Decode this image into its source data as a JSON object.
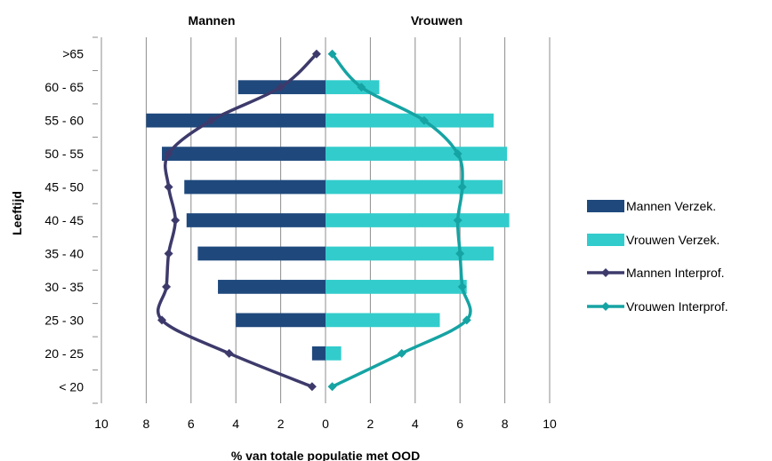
{
  "chart_data": {
    "type": "bar",
    "orientation": "horizontal",
    "layout": "population-pyramid",
    "panel_titles": [
      "Mannen",
      "Vrouwen"
    ],
    "xlabel": "% van totale populatie met OOD",
    "ylabel": "Leeftijd",
    "categories": [
      "< 20",
      "20 - 25",
      "25 - 30",
      "30 - 35",
      "35 - 40",
      "40 - 45",
      "45 - 50",
      "50 - 55",
      "55 - 60",
      "60 - 65",
      ">65"
    ],
    "x_ticks": [
      "10",
      "8",
      "6",
      "4",
      "2",
      "0",
      "2",
      "4",
      "6",
      "8",
      "10"
    ],
    "xlim": [
      -10,
      10
    ],
    "grid": "vertical",
    "legend_position": "right",
    "series": [
      {
        "name": "Mannen Verzek.",
        "kind": "bar",
        "side": "left",
        "color": "#1f497d",
        "values": [
          0,
          0.6,
          4.0,
          4.8,
          5.7,
          6.2,
          6.3,
          7.3,
          8.0,
          3.9,
          0
        ]
      },
      {
        "name": "Vrouwen Verzek.",
        "kind": "bar",
        "side": "right",
        "color": "#33cccc",
        "values": [
          0,
          0.7,
          5.1,
          6.3,
          7.5,
          8.2,
          7.9,
          8.1,
          7.5,
          2.4,
          0
        ]
      },
      {
        "name": "Mannen Interprof.",
        "kind": "line",
        "side": "left",
        "color": "#3d3a6b",
        "values": [
          0.6,
          4.3,
          7.3,
          7.1,
          7.0,
          6.7,
          7.0,
          7.0,
          5.1,
          2.0,
          0.4
        ]
      },
      {
        "name": "Vrouwen Interprof.",
        "kind": "line",
        "side": "right",
        "color": "#16a3a3",
        "values": [
          0.3,
          3.4,
          6.3,
          6.1,
          6.0,
          5.9,
          6.1,
          5.9,
          4.4,
          1.6,
          0.3
        ]
      }
    ]
  }
}
